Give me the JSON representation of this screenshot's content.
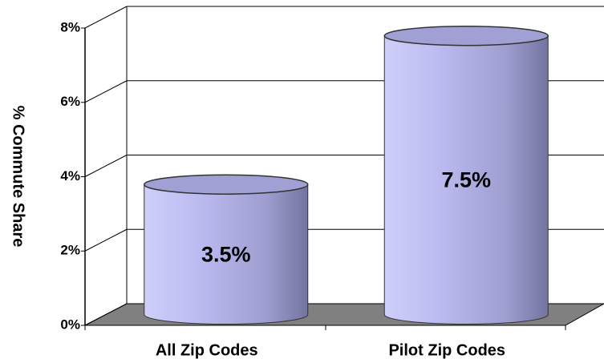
{
  "chart_data": {
    "type": "bar",
    "ylabel": "% Commute Share",
    "categories": [
      "All Zip Codes",
      "Pilot Zip Codes"
    ],
    "values": [
      3.5,
      7.5
    ],
    "value_labels": [
      "3.5%",
      "7.5%"
    ],
    "color": "#b0b0e8",
    "ylim": [
      0,
      8
    ],
    "yticks": [
      {
        "value": 0,
        "label": "0%"
      },
      {
        "value": 2,
        "label": "2%"
      },
      {
        "value": 4,
        "label": "4%"
      },
      {
        "value": 6,
        "label": "6%"
      },
      {
        "value": 8,
        "label": "8%"
      }
    ],
    "grid": true
  }
}
